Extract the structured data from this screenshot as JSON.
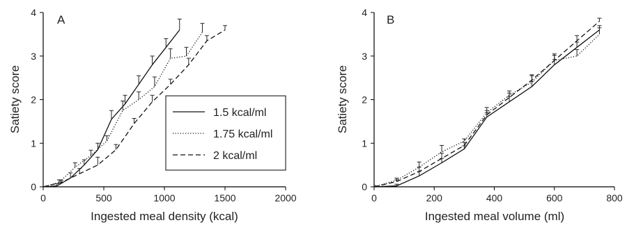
{
  "chart_data": [
    {
      "type": "line",
      "panel": "A",
      "xlabel": "Ingested meal density (kcal)",
      "ylabel": "Satiety score",
      "xlim": [
        0,
        2000
      ],
      "ylim": [
        0,
        4
      ],
      "xticks": [
        "0",
        "500",
        "1000",
        "1500",
        "2000"
      ],
      "yticks": [
        "0",
        "1",
        "2",
        "3",
        "4"
      ],
      "legend_position": "center-right",
      "series": [
        {
          "name": "1.5 kcal/ml",
          "style": "solid",
          "points": [
            [
              0,
              0
            ],
            [
              113,
              0.02
            ],
            [
              225,
              0.2
            ],
            [
              338,
              0.5
            ],
            [
              450,
              0.85
            ],
            [
              563,
              1.55
            ],
            [
              675,
              1.9
            ],
            [
              788,
              2.35
            ],
            [
              900,
              2.8
            ],
            [
              1013,
              3.2
            ],
            [
              1125,
              3.6
            ]
          ],
          "errors": [
            0.02,
            0.05,
            0.12,
            0.12,
            0.15,
            0.2,
            0.2,
            0.2,
            0.2,
            0.2,
            0.25
          ]
        },
        {
          "name": "1.75 kcal/ml",
          "style": "dotted",
          "points": [
            [
              0,
              0
            ],
            [
              131,
              0.1
            ],
            [
              263,
              0.45
            ],
            [
              394,
              0.72
            ],
            [
              525,
              1.05
            ],
            [
              656,
              1.75
            ],
            [
              788,
              2.0
            ],
            [
              919,
              2.3
            ],
            [
              1050,
              2.95
            ],
            [
              1181,
              3.0
            ],
            [
              1313,
              3.55
            ]
          ],
          "errors": [
            0.02,
            0.06,
            0.1,
            0.12,
            0.12,
            0.22,
            0.18,
            0.22,
            0.22,
            0.2,
            0.2
          ]
        },
        {
          "name": "2 kcal/ml",
          "style": "dashed",
          "points": [
            [
              0,
              0
            ],
            [
              150,
              0.1
            ],
            [
              300,
              0.3
            ],
            [
              450,
              0.5
            ],
            [
              600,
              0.85
            ],
            [
              750,
              1.45
            ],
            [
              900,
              1.95
            ],
            [
              1050,
              2.35
            ],
            [
              1200,
              2.8
            ],
            [
              1350,
              3.35
            ],
            [
              1500,
              3.6
            ]
          ],
          "errors": [
            0.02,
            0.05,
            0.12,
            0.18,
            0.12,
            0.12,
            0.15,
            0.12,
            0.15,
            0.12,
            0.1
          ]
        }
      ]
    },
    {
      "type": "line",
      "panel": "B",
      "xlabel": "Ingested meal volume (ml)",
      "ylabel": "Satiety score",
      "xlim": [
        0,
        800
      ],
      "ylim": [
        0,
        4
      ],
      "xticks": [
        "0",
        "200",
        "400",
        "600",
        "800"
      ],
      "yticks": [
        "0",
        "1",
        "2",
        "3",
        "4"
      ],
      "series": [
        {
          "name": "1.5 kcal/ml",
          "style": "solid",
          "points": [
            [
              0,
              0
            ],
            [
              75,
              0.02
            ],
            [
              150,
              0.25
            ],
            [
              225,
              0.55
            ],
            [
              300,
              0.87
            ],
            [
              375,
              1.6
            ],
            [
              450,
              1.95
            ],
            [
              525,
              2.3
            ],
            [
              600,
              2.8
            ],
            [
              675,
              3.2
            ],
            [
              750,
              3.6
            ]
          ],
          "errors": [
            0.02,
            0.04,
            0.1,
            0.1,
            0.07,
            0.1,
            0.12,
            0.12,
            0.12,
            0.12,
            0.1
          ]
        },
        {
          "name": "1.75 kcal/ml",
          "style": "dotted",
          "points": [
            [
              0,
              0
            ],
            [
              75,
              0.15
            ],
            [
              150,
              0.45
            ],
            [
              225,
              0.8
            ],
            [
              300,
              1.05
            ],
            [
              375,
              1.7
            ],
            [
              450,
              2.1
            ],
            [
              525,
              2.4
            ],
            [
              600,
              2.9
            ],
            [
              675,
              3.0
            ],
            [
              750,
              3.5
            ]
          ],
          "errors": [
            0.03,
            0.05,
            0.12,
            0.15,
            0.05,
            0.12,
            0.1,
            0.15,
            0.15,
            0.15,
            0.15
          ]
        },
        {
          "name": "2 kcal/ml",
          "style": "dashed",
          "points": [
            [
              0,
              0
            ],
            [
              75,
              0.12
            ],
            [
              150,
              0.35
            ],
            [
              225,
              0.65
            ],
            [
              300,
              0.95
            ],
            [
              375,
              1.65
            ],
            [
              450,
              2.05
            ],
            [
              525,
              2.45
            ],
            [
              600,
              2.9
            ],
            [
              675,
              3.35
            ],
            [
              750,
              3.8
            ]
          ],
          "errors": [
            0.02,
            0.04,
            0.1,
            0.12,
            0.07,
            0.1,
            0.1,
            0.12,
            0.12,
            0.12,
            0.07
          ]
        }
      ]
    }
  ]
}
